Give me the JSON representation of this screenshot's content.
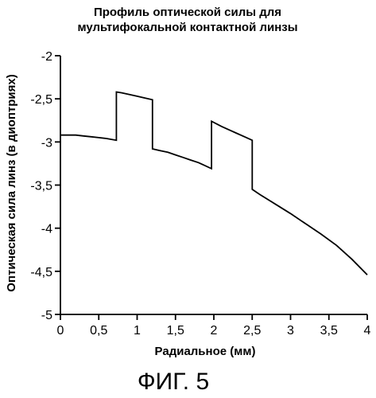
{
  "figure_label": "ФИГ. 5",
  "chart_data": {
    "type": "line",
    "title_lines": [
      "Профиль оптической силы для",
      "мультифокальной контактной линзы"
    ],
    "xlabel": "Радиальное (мм)",
    "ylabel": "Оптическая сила линз (в диоптриях)",
    "xlim": [
      0,
      4
    ],
    "ylim": [
      -5,
      -2
    ],
    "x_ticks": [
      0,
      0.5,
      1,
      1.5,
      2,
      2.5,
      3,
      3.5,
      4
    ],
    "x_tick_labels": [
      "0",
      "0,5",
      "1",
      "1,5",
      "2",
      "2,5",
      "3",
      "3,5",
      "4"
    ],
    "y_ticks": [
      -2,
      -2.5,
      -3,
      -3.5,
      -4,
      -4.5,
      -5
    ],
    "y_tick_labels": [
      "-2",
      "-2,5",
      "-3",
      "-3,5",
      "-4",
      "-4,5",
      "-5"
    ],
    "grid": false,
    "legend": "none",
    "line_color": "#000000",
    "series": [
      {
        "x": [
          0,
          0.1,
          0.2,
          0.3,
          0.4,
          0.5,
          0.6,
          0.73,
          0.73,
          0.8,
          0.9,
          1.0,
          1.1,
          1.2,
          1.2,
          1.3,
          1.4,
          1.5,
          1.6,
          1.7,
          1.8,
          1.97,
          1.97,
          2.1,
          2.2,
          2.3,
          2.4,
          2.5,
          2.5,
          2.6,
          2.8,
          3.0,
          3.2,
          3.4,
          3.6,
          3.8,
          4.0
        ],
        "y": [
          -2.92,
          -2.92,
          -2.92,
          -2.93,
          -2.94,
          -2.95,
          -2.96,
          -2.98,
          -2.42,
          -2.43,
          -2.45,
          -2.47,
          -2.49,
          -2.51,
          -3.08,
          -3.1,
          -3.12,
          -3.15,
          -3.18,
          -3.21,
          -3.24,
          -3.31,
          -2.76,
          -2.82,
          -2.86,
          -2.9,
          -2.94,
          -2.98,
          -3.55,
          -3.61,
          -3.72,
          -3.83,
          -3.95,
          -4.07,
          -4.2,
          -4.36,
          -4.54
        ]
      }
    ]
  }
}
